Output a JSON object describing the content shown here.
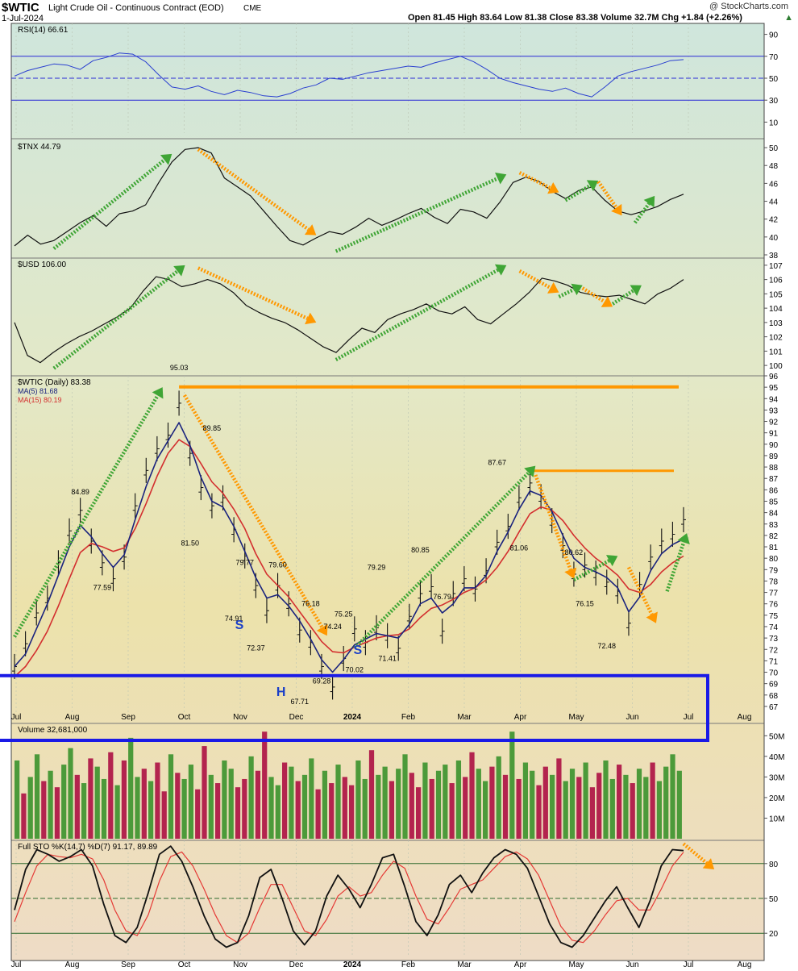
{
  "header": {
    "symbol": "$WTIC",
    "name": "Light Crude Oil - Continuous Contract (EOD)",
    "exchange": "CME",
    "date": "1-Jul-2024",
    "watermark": "@ StockCharts.com",
    "quote": "Open 81.45  High 83.64  Low 81.38  Close 83.38  Volume 32.7M  Chg +1.84 (+2.26%)",
    "quote_arrow": "up-triangle-icon"
  },
  "colors": {
    "panel_top_bg": "#cfe6dc",
    "panel_bottom_bg": "#eedfc4",
    "ma5": "#1a237e",
    "ma15": "#d32f2f",
    "arrow_up": "#3fa535",
    "arrow_down": "#ff9800",
    "resistance": "#ff9800",
    "neckline_box": "#1a1ae6",
    "volume_up": "#4c9a3a",
    "volume_down": "#b3244e",
    "hs_label": "#1a3fc8"
  },
  "chart_data": [
    {
      "panel": "rsi",
      "type": "line",
      "label": "RSI(14) 66.61",
      "ylim": [
        0,
        100
      ],
      "ticks": [
        "90",
        "70",
        "50",
        "30",
        "10"
      ],
      "reference_lines": [
        70,
        50,
        30
      ],
      "months": [
        "Jul",
        "Aug",
        "Sep",
        "Oct",
        "Nov",
        "Dec",
        "2024",
        "Feb",
        "Mar",
        "Apr",
        "May",
        "Jun",
        "Jul"
      ],
      "values": [
        52,
        57,
        60,
        63,
        62,
        58,
        66,
        69,
        73,
        72,
        65,
        53,
        42,
        40,
        43,
        38,
        35,
        39,
        37,
        34,
        33,
        36,
        41,
        44,
        50,
        49,
        52,
        55,
        57,
        59,
        61,
        60,
        64,
        67,
        70,
        65,
        58,
        50,
        46,
        43,
        40,
        38,
        41,
        36,
        33,
        42,
        52,
        56,
        59,
        62,
        66,
        67
      ]
    },
    {
      "panel": "tnx",
      "type": "line",
      "label": "$TNX 44.79",
      "ylim": [
        38,
        51
      ],
      "ticks": [
        "50",
        "48",
        "46",
        "44",
        "42",
        "40",
        "38"
      ],
      "values": [
        39.0,
        40.2,
        39.2,
        39.6,
        40.6,
        41.6,
        42.4,
        41.2,
        42.6,
        42.9,
        43.6,
        46.1,
        48.4,
        49.8,
        50.0,
        49.4,
        46.6,
        45.6,
        44.6,
        42.9,
        41.2,
        39.6,
        39.1,
        39.9,
        40.6,
        40.3,
        41.1,
        42.1,
        41.3,
        41.9,
        42.6,
        43.2,
        42.2,
        41.5,
        43.1,
        42.8,
        42.1,
        43.9,
        46.1,
        46.7,
        46.2,
        45.1,
        44.3,
        45.2,
        45.6,
        44.1,
        42.9,
        42.5,
        42.9,
        43.4,
        44.2,
        44.79
      ],
      "arrows": [
        {
          "direction": "up",
          "from_x": 3,
          "from_y": 38.7,
          "to_x": 12,
          "to_y": 49.3
        },
        {
          "direction": "down",
          "from_x": 14,
          "from_y": 49.8,
          "to_x": 23,
          "to_y": 40.2
        },
        {
          "direction": "up",
          "from_x": 24.5,
          "from_y": 38.4,
          "to_x": 37.5,
          "to_y": 47.0
        },
        {
          "direction": "down",
          "from_x": 38.5,
          "from_y": 47.2,
          "to_x": 41.5,
          "to_y": 45.0
        },
        {
          "direction": "up",
          "from_x": 42,
          "from_y": 44.1,
          "to_x": 44.5,
          "to_y": 46.3
        },
        {
          "direction": "down",
          "from_x": 44.5,
          "from_y": 46.2,
          "to_x": 46.3,
          "to_y": 42.4
        },
        {
          "direction": "up",
          "from_x": 47.3,
          "from_y": 41.6,
          "to_x": 48.8,
          "to_y": 44.6
        }
      ]
    },
    {
      "panel": "usd",
      "type": "line",
      "label": "$USD 106.00",
      "ylim": [
        99.5,
        107.5
      ],
      "ticks": [
        "107",
        "106",
        "105",
        "104",
        "103",
        "102",
        "101",
        "100"
      ],
      "values": [
        103.0,
        100.7,
        100.2,
        100.9,
        101.5,
        102.0,
        102.4,
        102.9,
        103.4,
        104.0,
        105.2,
        106.2,
        106.0,
        105.5,
        105.7,
        106.0,
        105.7,
        105.1,
        104.2,
        103.7,
        103.3,
        103.0,
        102.5,
        101.9,
        101.3,
        100.9,
        101.8,
        102.6,
        102.3,
        103.2,
        103.6,
        103.9,
        104.3,
        103.8,
        103.6,
        104.1,
        103.2,
        102.9,
        103.6,
        104.3,
        105.1,
        106.1,
        105.9,
        105.6,
        105.1,
        104.9,
        104.8,
        104.9,
        104.6,
        104.3,
        105.0,
        105.4,
        106.0
      ],
      "arrows": [
        {
          "direction": "up",
          "from_x": 3,
          "from_y": 99.8,
          "to_x": 13,
          "to_y": 107.0
        },
        {
          "direction": "down",
          "from_x": 14,
          "from_y": 106.8,
          "to_x": 23,
          "to_y": 103.0
        },
        {
          "direction": "up",
          "from_x": 24.5,
          "from_y": 100.4,
          "to_x": 37.5,
          "to_y": 107.0
        },
        {
          "direction": "down",
          "from_x": 38.5,
          "from_y": 106.6,
          "to_x": 41.5,
          "to_y": 105.1
        },
        {
          "direction": "up",
          "from_x": 41.5,
          "from_y": 104.8,
          "to_x": 43.3,
          "to_y": 105.6
        },
        {
          "direction": "down",
          "from_x": 43.3,
          "from_y": 105.4,
          "to_x": 45.6,
          "to_y": 104.1
        },
        {
          "direction": "up",
          "from_x": 45.6,
          "from_y": 104.3,
          "to_x": 47.8,
          "to_y": 105.6
        }
      ]
    },
    {
      "panel": "price",
      "type": "line",
      "label": "$WTIC (Daily) 83.38",
      "ma5_label": "MA(5) 81.68",
      "ma15_label": "MA(15) 80.19",
      "ylim": [
        66.5,
        96
      ],
      "ticks": [
        "96",
        "95",
        "94",
        "93",
        "92",
        "91",
        "90",
        "89",
        "88",
        "87",
        "86",
        "85",
        "84",
        "83",
        "82",
        "81",
        "80",
        "79",
        "78",
        "77",
        "76",
        "75",
        "74",
        "73",
        "72",
        "71",
        "70",
        "69",
        "68",
        "67"
      ],
      "months": [
        "Jul",
        "Aug",
        "Sep",
        "Oct",
        "Nov",
        "Dec",
        "2024",
        "Feb",
        "Mar",
        "Apr",
        "May",
        "Jun",
        "Jul"
      ],
      "values": [
        70.5,
        72.5,
        75.2,
        76.5,
        79.6,
        82.4,
        84.2,
        81.5,
        79.6,
        78.2,
        80.1,
        84.6,
        87.7,
        89.6,
        90.8,
        93.6,
        89.2,
        86.2,
        84.6,
        85.3,
        82.5,
        80.2,
        77.6,
        75.4,
        77.6,
        76.0,
        73.7,
        72.6,
        70.5,
        68.7,
        71.2,
        73.8,
        72.6,
        73.9,
        73.2,
        72.1,
        74.9,
        76.9,
        77.5,
        73.6,
        76.9,
        78.2,
        77.3,
        78.9,
        81.4,
        82.8,
        85.3,
        86.6,
        85.4,
        83.3,
        81.1,
        78.6,
        79.4,
        78.7,
        77.9,
        77.1,
        74.3,
        77.7,
        80.1,
        81.5,
        82.1,
        83.38
      ],
      "ma5": [
        70.5,
        71.6,
        73.8,
        76.0,
        78.5,
        81.0,
        82.9,
        81.9,
        80.4,
        79.2,
        80.3,
        83.4,
        86.3,
        88.7,
        90.3,
        91.9,
        89.9,
        87.1,
        85.0,
        84.5,
        82.8,
        80.6,
        78.3,
        76.5,
        76.8,
        75.8,
        74.5,
        72.9,
        71.1,
        70.0,
        71.1,
        72.4,
        72.9,
        73.4,
        73.2,
        73.0,
        74.2,
        76.0,
        76.5,
        75.2,
        76.0,
        77.4,
        77.4,
        78.5,
        80.6,
        82.3,
        84.3,
        85.9,
        85.5,
        84.1,
        82.0,
        80.0,
        79.2,
        78.8,
        78.3,
        77.4,
        75.3,
        76.6,
        78.9,
        80.4,
        81.2,
        81.68
      ],
      "ma15": [
        69.6,
        70.5,
        71.9,
        73.6,
        75.8,
        78.2,
        80.5,
        81.3,
        81.0,
        80.6,
        80.9,
        82.6,
        84.8,
        87.2,
        89.2,
        90.4,
        89.8,
        88.3,
        86.7,
        85.7,
        84.3,
        82.6,
        80.4,
        78.6,
        77.6,
        76.6,
        75.3,
        74.0,
        72.7,
        71.8,
        71.7,
        72.2,
        72.6,
        73.0,
        73.2,
        73.3,
        73.8,
        74.8,
        75.6,
        75.9,
        76.4,
        77.0,
        77.4,
        78.1,
        79.2,
        80.6,
        82.3,
        83.9,
        84.5,
        84.2,
        83.3,
        82.0,
        80.9,
        80.0,
        79.3,
        78.5,
        77.3,
        77.0,
        77.7,
        78.8,
        79.6,
        80.19
      ],
      "annotations": [
        "95.03",
        "89.85",
        "84.89",
        "77.59",
        "81.50",
        "79.77",
        "79.60",
        "74.91",
        "72.37",
        "76.18",
        "75.25",
        "74.24",
        "79.29",
        "80.85",
        "76.79",
        "87.67",
        "81.06",
        "80.62",
        "76.15",
        "72.48",
        "69.28",
        "67.71",
        "71.41",
        "70.02"
      ],
      "pattern_labels": [
        "S",
        "H",
        "S"
      ],
      "resistance_levels": [
        95.03,
        87.67
      ],
      "arrows": [
        {
          "direction": "up",
          "from_x": 0,
          "from_y": 73.1,
          "to_x": 13.5,
          "to_y": 95.0
        },
        {
          "direction": "down",
          "from_x": 15.5,
          "from_y": 94.3,
          "to_x": 28.5,
          "to_y": 73.2
        },
        {
          "direction": "up",
          "from_x": 31,
          "from_y": 72.1,
          "to_x": 47.5,
          "to_y": 88.1
        },
        {
          "direction": "down",
          "from_x": 47.5,
          "from_y": 87.3,
          "to_x": 51,
          "to_y": 78.2
        },
        {
          "direction": "up",
          "from_x": 51,
          "from_y": 78.1,
          "to_x": 55,
          "to_y": 80.2
        },
        {
          "direction": "down",
          "from_x": 56,
          "from_y": 79.2,
          "to_x": 58.5,
          "to_y": 74.3
        },
        {
          "direction": "up",
          "from_x": 59.5,
          "from_y": 77.1,
          "to_x": 61.3,
          "to_y": 82.2
        }
      ]
    },
    {
      "panel": "volume",
      "type": "bar",
      "label": "Volume 32,681,000",
      "ylim": [
        0,
        56
      ],
      "ticks": [
        "50M",
        "40M",
        "30M",
        "20M",
        "10M"
      ],
      "values": [
        38,
        22,
        30,
        41,
        28,
        33,
        25,
        36,
        44,
        31,
        27,
        39,
        35,
        29,
        42,
        26,
        38,
        49,
        30,
        34,
        28,
        37,
        23,
        41,
        32,
        29,
        36,
        24,
        45,
        31,
        27,
        38,
        34,
        25,
        29,
        40,
        33,
        52,
        30,
        26,
        37,
        35,
        28,
        31,
        39,
        24,
        33,
        27,
        36,
        30,
        26,
        38,
        29,
        43,
        31,
        35,
        28,
        34,
        41,
        32,
        25,
        37,
        29,
        33,
        36,
        27,
        38,
        30,
        42,
        34,
        28,
        35,
        40,
        31,
        52,
        29,
        37,
        33,
        26,
        35,
        31,
        39,
        28,
        34,
        30,
        37,
        25,
        32,
        38,
        29,
        36,
        31,
        27,
        34,
        30,
        37,
        28,
        35,
        41,
        33
      ],
      "up_days": [
        1,
        0,
        1,
        1,
        0,
        1,
        0,
        1,
        1,
        0,
        1,
        0,
        1,
        1,
        0,
        1,
        0,
        1,
        1,
        0,
        1,
        0,
        0,
        1,
        0,
        1,
        1,
        0,
        0,
        1,
        0,
        1,
        1,
        0,
        0,
        1,
        0,
        0,
        1,
        1,
        0,
        1,
        0,
        1,
        1,
        0,
        1,
        0,
        1,
        0,
        0,
        1,
        1,
        0,
        1,
        1,
        0,
        1,
        1,
        0,
        0,
        1,
        0,
        1,
        1,
        0,
        1,
        0,
        0,
        1,
        1,
        0,
        1,
        0,
        1,
        0,
        1,
        1,
        0,
        0,
        1,
        0,
        1,
        1,
        0,
        1,
        0,
        0,
        1,
        1,
        0,
        1,
        0,
        1,
        1,
        0,
        1,
        1,
        1,
        1
      ]
    },
    {
      "panel": "stochastic",
      "type": "line",
      "label": "Full STO %K(14,7) %D(7) 91.17, 89.89",
      "ylim": [
        0,
        100
      ],
      "ticks": [
        "80",
        "50",
        "20"
      ],
      "reference_lines": [
        80,
        50,
        20
      ],
      "months": [
        "Jul",
        "Aug",
        "Sep",
        "Oct",
        "Nov",
        "Dec",
        "2024",
        "Feb",
        "Mar",
        "Apr",
        "May",
        "Jun",
        "Jul"
      ],
      "k": [
        40,
        75,
        92,
        88,
        82,
        86,
        92,
        78,
        45,
        18,
        12,
        25,
        55,
        88,
        95,
        82,
        60,
        35,
        15,
        8,
        12,
        35,
        68,
        75,
        50,
        22,
        10,
        22,
        52,
        70,
        58,
        42,
        62,
        85,
        88,
        60,
        30,
        18,
        36,
        62,
        70,
        55,
        72,
        85,
        92,
        88,
        76,
        52,
        28,
        12,
        8,
        18,
        33,
        48,
        60,
        42,
        25,
        48,
        78,
        92,
        91.17
      ],
      "d": [
        30,
        55,
        78,
        88,
        86,
        85,
        88,
        84,
        66,
        40,
        22,
        18,
        36,
        65,
        86,
        90,
        78,
        58,
        36,
        18,
        12,
        20,
        42,
        62,
        62,
        42,
        22,
        18,
        32,
        52,
        60,
        52,
        55,
        70,
        82,
        76,
        52,
        32,
        28,
        42,
        58,
        62,
        66,
        76,
        86,
        90,
        84,
        70,
        48,
        26,
        14,
        12,
        22,
        36,
        48,
        50,
        40,
        40,
        58,
        78,
        89.89
      ],
      "arrows": [
        {
          "direction": "down",
          "from_x": 61,
          "from_y": 97,
          "to_x": 63.8,
          "to_y": 75
        }
      ]
    }
  ]
}
